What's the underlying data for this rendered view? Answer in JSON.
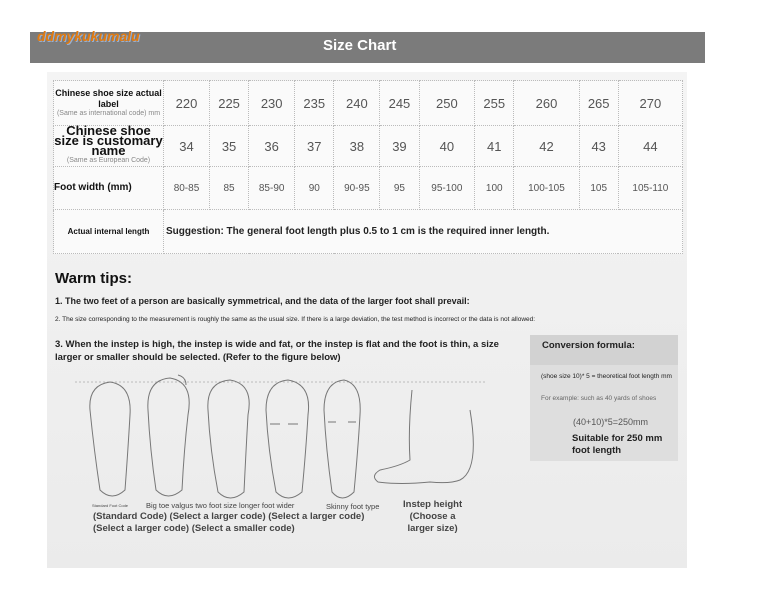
{
  "logo": "ddmykukumalu",
  "title": "Size Chart",
  "table": {
    "row_labels": [
      {
        "main": "Chinese shoe size actual label",
        "sub": "(Same as international code) mm"
      },
      {
        "main": "Chinese shoe size is customary name",
        "sub": "(Same as European Code)"
      },
      {
        "main": "Foot width (mm)",
        "sub": ""
      },
      {
        "main": "Actual internal length",
        "sub": ""
      }
    ],
    "mm": [
      "220",
      "225",
      "230",
      "235",
      "240",
      "245",
      "250",
      "255",
      "260",
      "265",
      "270"
    ],
    "eu": [
      "34",
      "35",
      "36",
      "37",
      "38",
      "39",
      "40",
      "41",
      "42",
      "43",
      "44"
    ],
    "width": [
      "80-85",
      "85",
      "85-90",
      "90",
      "90-95",
      "95",
      "95-100",
      "100",
      "100-105",
      "105",
      "105-110"
    ],
    "suggestion": "Suggestion: The general foot length plus 0.5 to 1 cm is the required inner length."
  },
  "tips": {
    "title": "Warm tips:",
    "t1": "1. The two feet of a person are basically symmetrical, and the data of the larger foot shall prevail:",
    "t2": "2. The size corresponding to the measurement is roughly the same as the usual size. If there is a large deviation, the test method is incorrect or the data is not allowed:",
    "t3": "3. When the instep is high, the instep is wide and fat, or the instep is flat and the foot is thin, a size larger or smaller should be selected. (Refer to the figure below)"
  },
  "conversion": {
    "title": "Conversion formula:",
    "formula": "(shoe size 10)* 5 = theoretical foot length mm",
    "example": "For example: such as 40 yards of shoes",
    "calc": "(40+10)*5=250mm",
    "suitable": "Suitable for 250 mm foot length"
  },
  "figure": {
    "cap_standard": "Standard Foot Code",
    "cap_types": "Big toe valgus two foot size longer foot wider",
    "cap_skinny": "Skinny foot type",
    "codes1": "(Standard Code) (Select a larger code) (Select a larger code)",
    "codes2": "(Select a larger code) (Select a smaller code)",
    "instep1": "Instep height",
    "instep2": "(Choose a",
    "instep3": "larger size)"
  }
}
